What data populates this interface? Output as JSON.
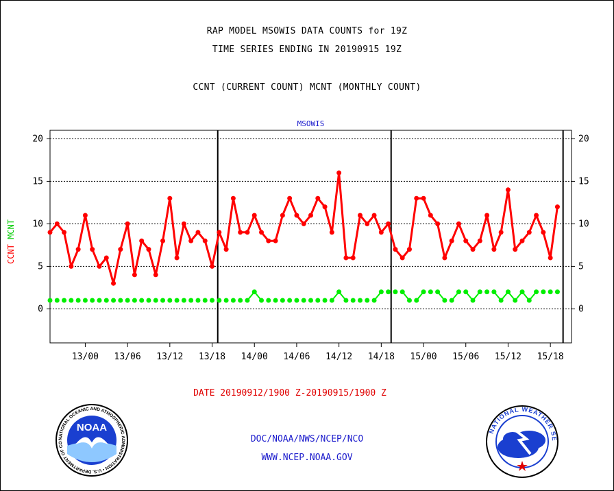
{
  "header": {
    "line1": "RAP MODEL MSOWIS DATA COUNTS for 19Z",
    "line2": "TIME SERIES ENDING IN 20190915 19Z",
    "line3": "CCNT (CURRENT COUNT) MCNT (MONTHLY COUNT)"
  },
  "footer": {
    "date_range": "DATE 20190912/1900 Z-20190915/1900 Z",
    "org": "DOC/NOAA/NWS/NCEP/NCO",
    "url": "WWW.NCEP.NOAA.GOV"
  },
  "logos": {
    "noaa_text": "NOAA",
    "noaa_ring": "NATIONAL OCEANIC AND ATMOSPHERIC ADMINISTRATION • U.S. DEPARTMENT OF COMMERCE •",
    "nws_ring": "NATIONAL WEATHER SERVICE"
  },
  "chart_data": {
    "type": "line",
    "title": "MSOWIS",
    "ylabel_ccnt": "CCNT",
    "ylabel_mcnt": "MCNT",
    "ylim": [
      -4,
      21
    ],
    "yticks": [
      0,
      5,
      10,
      15,
      20
    ],
    "grid": true,
    "x_range_hours": [
      0,
      74
    ],
    "xticks": [
      {
        "hour": 5,
        "label": "13/00"
      },
      {
        "hour": 11,
        "label": "13/06"
      },
      {
        "hour": 17,
        "label": "13/12"
      },
      {
        "hour": 23,
        "label": "13/18"
      },
      {
        "hour": 29,
        "label": "14/00"
      },
      {
        "hour": 35,
        "label": "14/06"
      },
      {
        "hour": 41,
        "label": "14/12"
      },
      {
        "hour": 47,
        "label": "14/18"
      },
      {
        "hour": 53,
        "label": "15/00"
      },
      {
        "hour": 59,
        "label": "15/06"
      },
      {
        "hour": 65,
        "label": "15/12"
      },
      {
        "hour": 71,
        "label": "15/18"
      }
    ],
    "vlines_hours": [
      23.8,
      48.4,
      72.8
    ],
    "series": [
      {
        "name": "CCNT",
        "color": "#ff0000",
        "values": [
          9,
          10,
          9,
          5,
          7,
          11,
          7,
          5,
          6,
          3,
          7,
          10,
          4,
          8,
          7,
          4,
          8,
          13,
          6,
          10,
          8,
          9,
          8,
          5,
          9,
          7,
          13,
          9,
          9,
          11,
          9,
          8,
          8,
          11,
          13,
          11,
          10,
          11,
          13,
          12,
          9,
          16,
          6,
          6,
          11,
          10,
          11,
          9,
          10,
          7,
          6,
          7,
          13,
          13,
          11,
          10,
          6,
          8,
          10,
          8,
          7,
          8,
          11,
          7,
          9,
          14,
          7,
          8,
          9,
          11,
          9,
          6,
          12
        ]
      },
      {
        "name": "MCNT",
        "color": "#00ee00",
        "values": [
          1,
          1,
          1,
          1,
          1,
          1,
          1,
          1,
          1,
          1,
          1,
          1,
          1,
          1,
          1,
          1,
          1,
          1,
          1,
          1,
          1,
          1,
          1,
          1,
          1,
          1,
          1,
          1,
          1,
          2,
          1,
          1,
          1,
          1,
          1,
          1,
          1,
          1,
          1,
          1,
          1,
          2,
          1,
          1,
          1,
          1,
          1,
          2,
          2,
          2,
          2,
          1,
          1,
          2,
          2,
          2,
          1,
          1,
          2,
          2,
          1,
          2,
          2,
          2,
          1,
          2,
          1,
          2,
          1,
          2,
          2,
          2,
          2
        ]
      }
    ]
  }
}
